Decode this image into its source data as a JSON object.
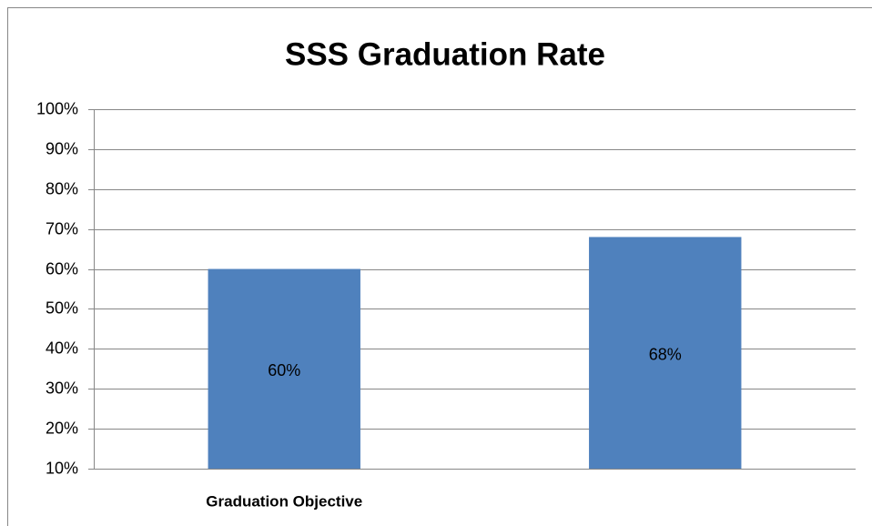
{
  "chart_data": {
    "type": "bar",
    "title": "SSS Graduation Rate",
    "categories": [
      "Graduation Objective",
      null
    ],
    "values": [
      60,
      68
    ],
    "value_labels": [
      "60%",
      "68%"
    ],
    "color": "#4f81bd",
    "ylim": [
      10,
      100
    ],
    "yticks": [
      {
        "value": 10,
        "label": "10%"
      },
      {
        "value": 20,
        "label": "20%"
      },
      {
        "value": 30,
        "label": "30%"
      },
      {
        "value": 40,
        "label": "40%"
      },
      {
        "value": 50,
        "label": "50%"
      },
      {
        "value": 60,
        "label": "60%"
      },
      {
        "value": 70,
        "label": "70%"
      },
      {
        "value": 80,
        "label": "80%"
      },
      {
        "value": 90,
        "label": "90%"
      },
      {
        "value": 100,
        "label": "100%"
      }
    ],
    "grid": true
  }
}
